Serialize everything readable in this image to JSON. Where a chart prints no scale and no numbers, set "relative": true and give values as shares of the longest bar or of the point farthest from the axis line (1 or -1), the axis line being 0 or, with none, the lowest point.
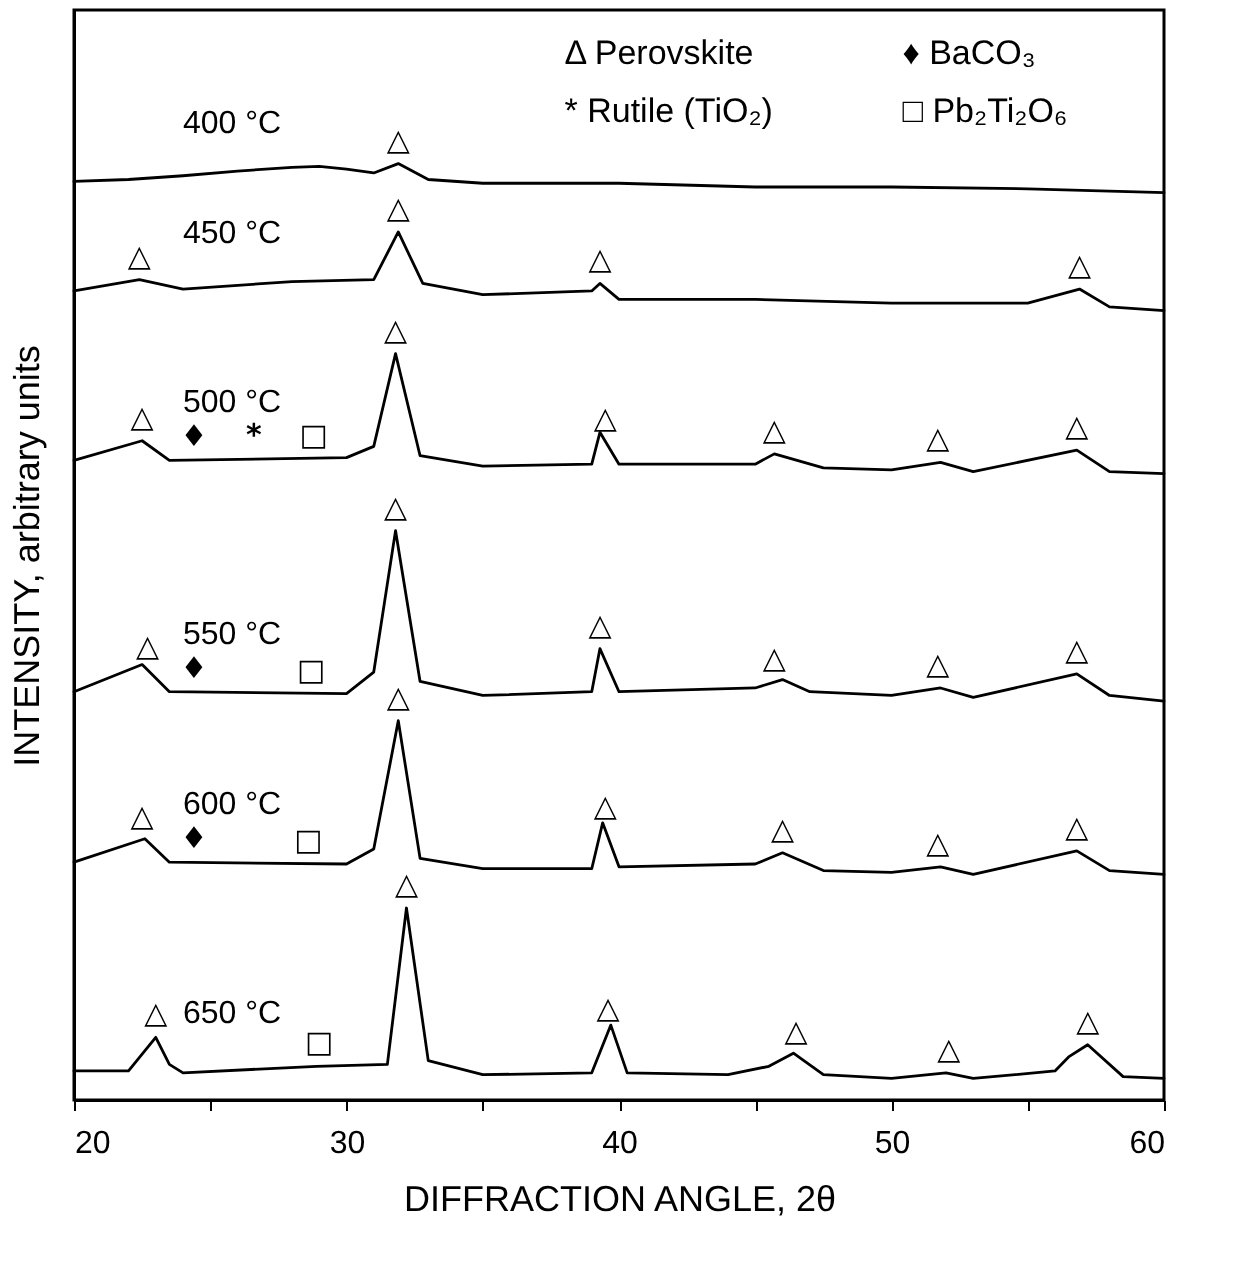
{
  "chart_data": {
    "type": "line",
    "relative": true,
    "xlabel": "DIFFRACTION ANGLE, 2θ",
    "ylabel": "INTENSITY, arbitrary units",
    "xlim": [
      20,
      60
    ],
    "xticks": [
      20,
      {
        "value": 25,
        "label": null
      },
      30,
      {
        "value": 35,
        "label": null
      },
      40,
      {
        "value": 45,
        "label": null
      },
      50,
      {
        "value": 55,
        "label": null
      },
      60
    ],
    "grid": false,
    "legend": false,
    "marker": "none",
    "line_style": "solid",
    "series": [
      {
        "name": "400 °C",
        "color": "#000000",
        "x": [
          20,
          22,
          24,
          26,
          28,
          29,
          30,
          31,
          31.9,
          33,
          35,
          40,
          45,
          50,
          55,
          60
        ],
        "values": [
          0.981,
          0.983,
          0.987,
          0.992,
          0.996,
          0.997,
          0.994,
          0.99,
          1,
          0.983,
          0.979,
          0.979,
          0.975,
          0.975,
          0.973,
          0.969
        ]
      },
      {
        "name": "450 °C",
        "color": "#000000",
        "x": [
          20,
          22.4,
          24,
          28,
          31,
          31.9,
          32.8,
          35,
          39,
          39.3,
          40,
          45,
          50,
          55,
          56.9,
          58,
          60
        ],
        "values": [
          0.864,
          0.876,
          0.866,
          0.874,
          0.876,
          0.927,
          0.872,
          0.86,
          0.864,
          0.872,
          0.855,
          0.855,
          0.851,
          0.851,
          0.866,
          0.847,
          0.843
        ]
      },
      {
        "name": "500 °C",
        "color": "#000000",
        "x": [
          20,
          22.5,
          23.5,
          30,
          31,
          31.8,
          32.7,
          35,
          39,
          39.3,
          40,
          45,
          45.7,
          47.5,
          50,
          51.8,
          53,
          56.8,
          58,
          60
        ],
        "values": [
          0.683,
          0.704,
          0.683,
          0.686,
          0.698,
          0.797,
          0.688,
          0.677,
          0.679,
          0.713,
          0.679,
          0.679,
          0.69,
          0.675,
          0.673,
          0.681,
          0.671,
          0.694,
          0.671,
          0.669
        ]
      },
      {
        "name": "550 °C",
        "color": "#000000",
        "x": [
          20,
          22.5,
          23.5,
          30,
          31,
          31.8,
          32.7,
          35,
          39,
          39.3,
          40,
          45,
          46,
          47,
          50,
          51.8,
          53,
          56.8,
          58,
          60
        ],
        "values": [
          0.436,
          0.465,
          0.436,
          0.434,
          0.457,
          0.608,
          0.447,
          0.432,
          0.436,
          0.482,
          0.436,
          0.44,
          0.449,
          0.436,
          0.432,
          0.44,
          0.43,
          0.455,
          0.432,
          0.426
        ]
      },
      {
        "name": "600 °C",
        "color": "#000000",
        "x": [
          20,
          22.6,
          23.5,
          30,
          31,
          31.9,
          32.7,
          35,
          39,
          39.4,
          40,
          45,
          46,
          47.5,
          50,
          51.8,
          53,
          56.8,
          58,
          60
        ],
        "values": [
          0.254,
          0.279,
          0.254,
          0.252,
          0.268,
          0.405,
          0.258,
          0.247,
          0.247,
          0.296,
          0.249,
          0.252,
          0.264,
          0.245,
          0.243,
          0.249,
          0.241,
          0.266,
          0.245,
          0.241
        ]
      },
      {
        "name": "650 °C",
        "color": "#000000",
        "x": [
          20,
          22,
          23,
          23.5,
          24,
          28.9,
          31.5,
          32.2,
          33,
          35,
          39,
          39.7,
          40.3,
          44,
          45.5,
          46.4,
          47.5,
          50,
          52,
          53,
          56,
          56.5,
          57.2,
          58.5,
          60
        ],
        "values": [
          0.031,
          0.031,
          0.067,
          0.038,
          0.029,
          0.036,
          0.038,
          0.205,
          0.042,
          0.027,
          0.029,
          0.08,
          0.029,
          0.027,
          0.036,
          0.05,
          0.027,
          0.023,
          0.029,
          0.023,
          0.031,
          0.046,
          0.059,
          0.025,
          0.023
        ]
      }
    ],
    "annotations": [
      "Δ Perovskite",
      "♦ BaCO₃",
      "* Rutile (TiO₂)",
      "□ Pb₂Ti₂O₆",
      {
        "text": "△",
        "x": 31.9,
        "y": 1
      },
      {
        "text": "△",
        "x": 22.4,
        "y": 0.876
      },
      {
        "text": "△",
        "x": 31.9,
        "y": 0.927
      },
      {
        "text": "△",
        "x": 39.3,
        "y": 0.872
      },
      {
        "text": "△",
        "x": 56.9,
        "y": 0.866
      },
      {
        "text": "△",
        "x": 22.5,
        "y": 0.704
      },
      {
        "text": "△",
        "x": 31.8,
        "y": 0.797
      },
      {
        "text": "△",
        "x": 39.5,
        "y": 0.703
      },
      {
        "text": "△",
        "x": 45.7,
        "y": 0.69
      },
      {
        "text": "△",
        "x": 51.7,
        "y": 0.681
      },
      {
        "text": "△",
        "x": 56.8,
        "y": 0.694
      },
      {
        "text": "♦",
        "x": 24.4,
        "y": 0.683
      },
      {
        "text": "*",
        "x": 26.6,
        "y": 0.684
      },
      {
        "text": "□",
        "x": 28.8,
        "y": 0.685
      },
      {
        "text": "△",
        "x": 22.7,
        "y": 0.459
      },
      {
        "text": "△",
        "x": 31.8,
        "y": 0.608
      },
      {
        "text": "△",
        "x": 39.3,
        "y": 0.482
      },
      {
        "text": "△",
        "x": 45.7,
        "y": 0.446
      },
      {
        "text": "△",
        "x": 51.7,
        "y": 0.44
      },
      {
        "text": "△",
        "x": 56.8,
        "y": 0.455
      },
      {
        "text": "♦",
        "x": 24.4,
        "y": 0.436
      },
      {
        "text": "□",
        "x": 28.7,
        "y": 0.434
      },
      {
        "text": "△",
        "x": 22.5,
        "y": 0.278
      },
      {
        "text": "△",
        "x": 31.9,
        "y": 0.405
      },
      {
        "text": "△",
        "x": 39.5,
        "y": 0.288
      },
      {
        "text": "△",
        "x": 46.0,
        "y": 0.264
      },
      {
        "text": "△",
        "x": 51.7,
        "y": 0.249
      },
      {
        "text": "△",
        "x": 56.8,
        "y": 0.266
      },
      {
        "text": "♦",
        "x": 24.4,
        "y": 0.254
      },
      {
        "text": "□",
        "x": 28.6,
        "y": 0.252
      },
      {
        "text": "△",
        "x": 32.2,
        "y": 0.205
      },
      {
        "text": "△",
        "x": 23.0,
        "y": 0.067
      },
      {
        "text": "△",
        "x": 39.6,
        "y": 0.073
      },
      {
        "text": "△",
        "x": 46.5,
        "y": 0.048
      },
      {
        "text": "△",
        "x": 52.1,
        "y": 0.029
      },
      {
        "text": "△",
        "x": 57.2,
        "y": 0.059
      },
      {
        "text": "□",
        "x": 29.0,
        "y": 0.036
      }
    ]
  }
}
